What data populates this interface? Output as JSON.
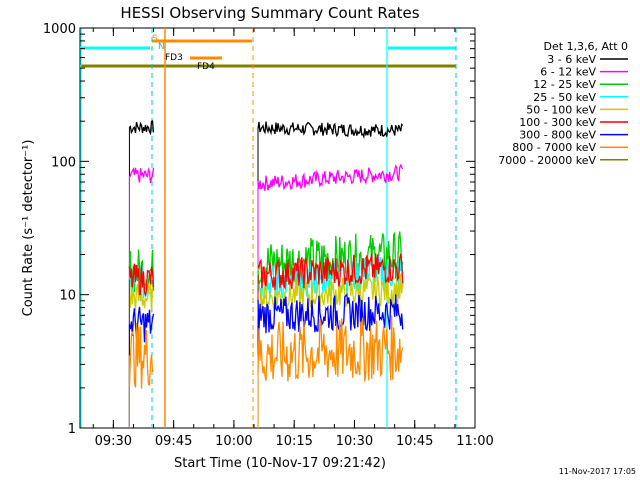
{
  "chart_data": {
    "type": "line",
    "title": "HESSI Observing Summary Count Rates",
    "xlabel": "Start Time (10-Nov-17 09:21:42)",
    "ylabel": "Count Rate (s⁻¹ detector⁻¹)",
    "x_range": [
      "09:21:42",
      "11:00"
    ],
    "y_range": [
      1,
      1000
    ],
    "y_scale": "log",
    "x_ticks": [
      "09:30",
      "09:45",
      "10:00",
      "10:15",
      "10:30",
      "10:45",
      "11:00"
    ],
    "y_ticks": [
      "1",
      "10",
      "100",
      "1000"
    ],
    "legend_title": "Det 1,3,6, Att 0",
    "legend_placement": "right",
    "timestamp": "11-Nov-2017 17:05",
    "series": [
      {
        "name": "3 - 6 keV",
        "color": "#000000",
        "segments": [
          {
            "x": [
              "09:34",
              "09:40"
            ],
            "y": [
              180,
              180
            ]
          },
          {
            "x": [
              "10:06",
              "10:42"
            ],
            "y": [
              178,
              170
            ]
          }
        ]
      },
      {
        "name": "6 - 12 keV",
        "color": "#ff00ff",
        "segments": [
          {
            "x": [
              "09:34",
              "09:40"
            ],
            "y": [
              78,
              78
            ]
          },
          {
            "x": [
              "10:06",
              "10:42"
            ],
            "y": [
              68,
              82
            ]
          }
        ]
      },
      {
        "name": "12 - 25 keV",
        "color": "#00cc00",
        "segments": [
          {
            "x": [
              "09:34",
              "09:40"
            ],
            "y": [
              15,
              15
            ]
          },
          {
            "x": [
              "10:06",
              "10:42"
            ],
            "y": [
              17,
              20
            ]
          }
        ]
      },
      {
        "name": "25 - 50 keV",
        "color": "#00ffff",
        "segments": [
          {
            "x": [
              "09:34",
              "09:40"
            ],
            "y": [
              12,
              12
            ]
          },
          {
            "x": [
              "10:06",
              "10:42"
            ],
            "y": [
              12,
              15
            ]
          }
        ]
      },
      {
        "name": "50 - 100 keV",
        "color": "#cccc00",
        "segments": [
          {
            "x": [
              "09:34",
              "09:40"
            ],
            "y": [
              9.5,
              9.5
            ]
          },
          {
            "x": [
              "10:06",
              "10:42"
            ],
            "y": [
              9.5,
              11
            ]
          }
        ]
      },
      {
        "name": "100 - 300 keV",
        "color": "#ff0000",
        "segments": [
          {
            "x": [
              "09:34",
              "09:40"
            ],
            "y": [
              13,
              13
            ]
          },
          {
            "x": [
              "10:06",
              "10:42"
            ],
            "y": [
              14,
              16
            ]
          }
        ]
      },
      {
        "name": "300 - 800 keV",
        "color": "#0000ff",
        "segments": [
          {
            "x": [
              "09:34",
              "09:40"
            ],
            "y": [
              6,
              6
            ]
          },
          {
            "x": [
              "10:06",
              "10:42"
            ],
            "y": [
              7,
              7.5
            ]
          }
        ]
      },
      {
        "name": "800 - 7000 keV",
        "color": "#ff8c00",
        "segments": [
          {
            "x": [
              "09:34",
              "09:40"
            ],
            "y": [
              3.5,
              3.5
            ]
          },
          {
            "x": [
              "10:06",
              "10:42"
            ],
            "y": [
              3.5,
              4
            ]
          }
        ]
      },
      {
        "name": "7000 - 20000 keV",
        "color": "#808000",
        "segments": []
      }
    ],
    "flags": [
      {
        "label": "S",
        "color": "#ff8c00"
      },
      {
        "label": "N",
        "color": "#00cccc"
      },
      {
        "label": "FD3",
        "color": "#ff8c00"
      },
      {
        "label": "FD4",
        "color": "#808000"
      }
    ]
  }
}
